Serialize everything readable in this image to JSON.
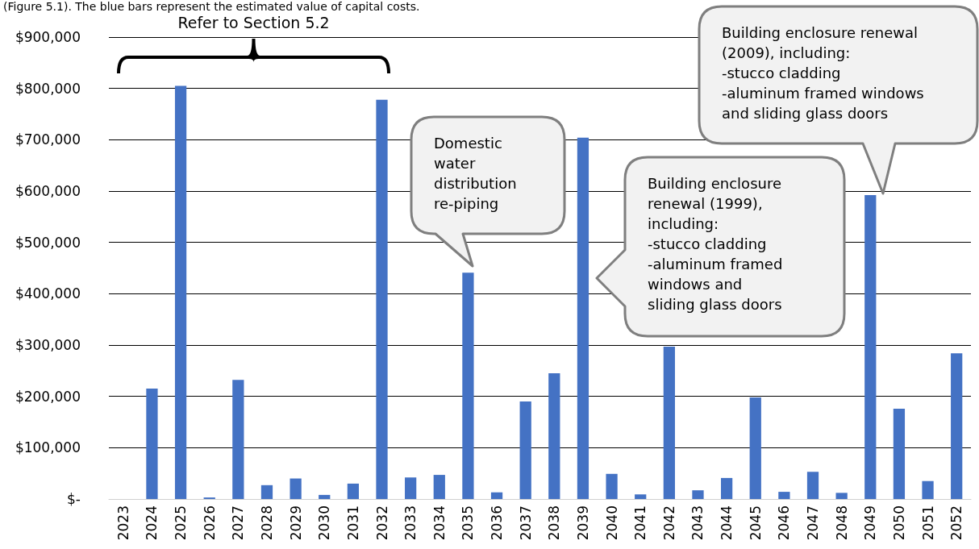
{
  "chart_data": {
    "type": "bar",
    "categories": [
      "2023",
      "2024",
      "2025",
      "2026",
      "2027",
      "2028",
      "2029",
      "2030",
      "2031",
      "2032",
      "2033",
      "2034",
      "2035",
      "2036",
      "2037",
      "2038",
      "2039",
      "2040",
      "2041",
      "2042",
      "2043",
      "2044",
      "2045",
      "2046",
      "2047",
      "2048",
      "2049",
      "2050",
      "2051",
      "2052"
    ],
    "values": [
      0,
      215000,
      805000,
      3000,
      232000,
      27000,
      40000,
      8000,
      30000,
      778000,
      42000,
      47000,
      441000,
      13000,
      190000,
      245000,
      704000,
      49000,
      9000,
      297000,
      17000,
      41000,
      198000,
      14000,
      53000,
      12000,
      592000,
      176000,
      35000,
      284000
    ],
    "color": "#4472c4",
    "ylim": [
      0,
      900000
    ],
    "yticks": [
      {
        "value": 0,
        "label": "$-"
      },
      {
        "value": 100000,
        "label": "$100,000"
      },
      {
        "value": 200000,
        "label": "$200,000"
      },
      {
        "value": 300000,
        "label": "$300,000"
      },
      {
        "value": 400000,
        "label": "$400,000"
      },
      {
        "value": 500000,
        "label": "$500,000"
      },
      {
        "value": 600000,
        "label": "$600,000"
      },
      {
        "value": 700000,
        "label": "$700,000"
      },
      {
        "value": 800000,
        "label": "$800,000"
      },
      {
        "value": 900000,
        "label": "$900,000"
      }
    ],
    "grid": "y",
    "annotations": [
      "(Figure 5.1). The blue bars represent the estimated value of capital costs.",
      "Refer to Section 5.2",
      "Domestic\nwater\ndistribution\nre-piping",
      "Building enclosure\nrenewal (1999),\nincluding:\n-stucco cladding\n-aluminum framed\nwindows and\nsliding glass doors",
      "Building enclosure renewal\n(2009), including:\n-stucco cladding\n-aluminum framed windows\nand sliding glass doors"
    ]
  }
}
